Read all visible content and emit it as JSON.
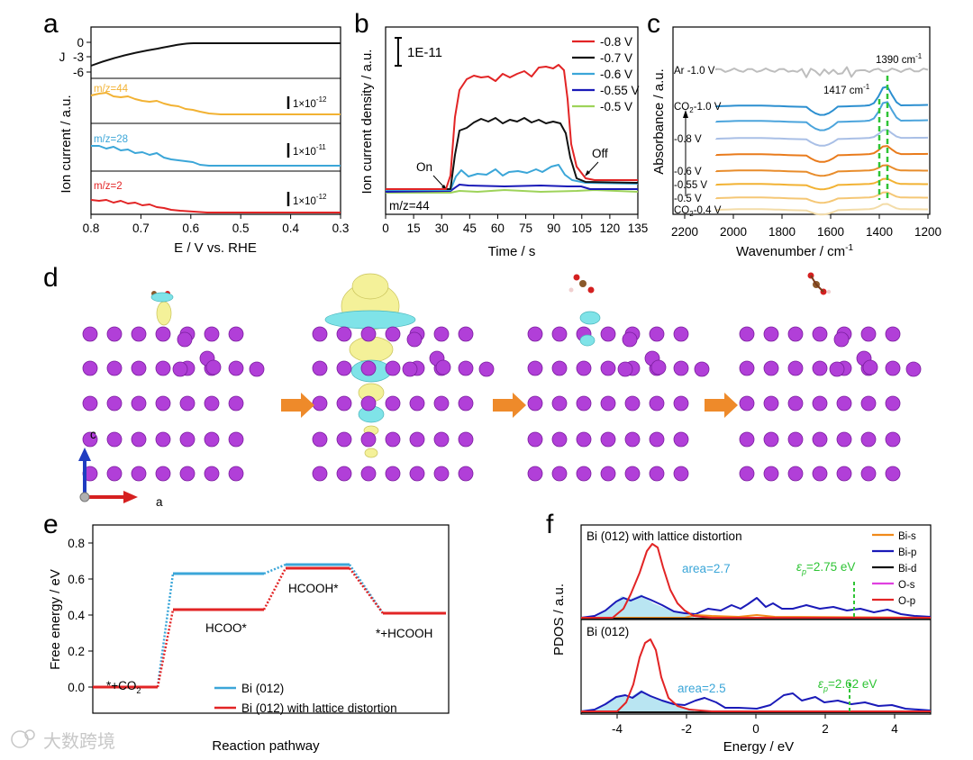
{
  "watermark": "大数跨境",
  "panel_a": {
    "letter": "a",
    "xlabel": "E / V vs. RHE",
    "ylabel": "Ion current / a.u.",
    "jlabel": "J",
    "xticks": [
      "0.8",
      "0.7",
      "0.6",
      "0.5",
      "0.4",
      "0.3"
    ],
    "jticks": [
      "0",
      "-3",
      "-6"
    ],
    "traces": [
      {
        "label": "m/z=44",
        "scale": "1×10",
        "exp": "-12",
        "color": "#F2B233"
      },
      {
        "label": "m/z=28",
        "scale": "1×10",
        "exp": "-11",
        "color": "#3BA6D8"
      },
      {
        "label": "m/z=2",
        "scale": "1×10",
        "exp": "-12",
        "color": "#E22425"
      }
    ]
  },
  "panel_b": {
    "letter": "b",
    "xlabel": "Time / s",
    "ylabel": "Ion current density / a.u.",
    "xticks": [
      "0",
      "15",
      "30",
      "45",
      "60",
      "75",
      "90",
      "105",
      "120",
      "135"
    ],
    "scale_label": "1E-11",
    "mz_label": "m/z=44",
    "on_label": "On",
    "off_label": "Off",
    "legend": [
      {
        "label": "-0.8 V",
        "color": "#E22425"
      },
      {
        "label": "-0.7 V",
        "color": "#111111"
      },
      {
        "label": "-0.6 V",
        "color": "#3BA6D8"
      },
      {
        "label": "-0.55 V",
        "color": "#1A1AB8"
      },
      {
        "label": "-0.5 V",
        "color": "#9ED35A"
      }
    ]
  },
  "panel_c": {
    "letter": "c",
    "xlabel": "Wavenumber / cm",
    "xlabel_sup": "-1",
    "ylabel": "Absorbance / a.u.",
    "xticks": [
      "2200",
      "2000",
      "1800",
      "1600",
      "1400",
      "1200"
    ],
    "peak1": "1390 cm",
    "peak2": "1417 cm",
    "peak_sup": "-1",
    "spectra": [
      {
        "label": "Ar -1.0 V",
        "color": "#BDBDBD"
      },
      {
        "label": "CO",
        "sub": "2",
        "label2": "-1.0 V",
        "color": "#2C8FD0"
      },
      {
        "label": "",
        "color": "#4BA4DC"
      },
      {
        "label": "-0.8 V",
        "color": "#A9BFE6"
      },
      {
        "label": "",
        "color": "#E97B1C"
      },
      {
        "label": "-0.6 V",
        "color": "#E88C2B"
      },
      {
        "label": "-0.55 V",
        "color": "#F2B233"
      },
      {
        "label": "-0.5 V",
        "color": "#F5C775"
      },
      {
        "label": "CO",
        "sub": "2",
        "label2": "-0.4 V",
        "color": "#F3DCA8"
      }
    ]
  },
  "panel_d": {
    "letter": "d",
    "axis_c": "c",
    "axis_a": "a"
  },
  "panel_e": {
    "letter": "e",
    "ylabel": "Free energy / eV",
    "xlabel": "Reaction pathway",
    "yticks": [
      "0.0",
      "0.2",
      "0.4",
      "0.6",
      "0.8"
    ],
    "labels": {
      "start": "*+CO",
      "start_sub": "2",
      "hcoo": "HCOO*",
      "hcooh": "HCOOH*",
      "end": "*+HCOOH"
    },
    "legend": [
      "Bi (012)",
      "Bi (012) with lattice distortion"
    ],
    "chart_data": {
      "type": "line",
      "x": [
        "*+CO2",
        "HCOO*",
        "HCOOH*",
        "*+HCOOH"
      ],
      "series": [
        {
          "name": "Bi (012)",
          "color": "#3BA6D8",
          "values": [
            0.0,
            0.63,
            0.68,
            0.41
          ]
        },
        {
          "name": "Bi (012) with lattice distortion",
          "color": "#E22425",
          "values": [
            0.0,
            0.43,
            0.66,
            0.41
          ]
        }
      ],
      "ylabel": "Free energy / eV",
      "xlabel": "Reaction pathway",
      "ylim": [
        -0.1,
        0.9
      ]
    }
  },
  "panel_f": {
    "letter": "f",
    "xlabel": "Energy / eV",
    "ylabel": "PDOS / a.u.",
    "xticks": [
      "-4",
      "-2",
      "0",
      "2",
      "4"
    ],
    "top_title": "Bi (012) with lattice distortion",
    "bottom_title": "Bi (012)",
    "area_top": "area=2.7",
    "area_bottom": "area=2.5",
    "eps_top": "=2.75 eV",
    "eps_bottom": "=2.62 eV",
    "eps_sym": "ε",
    "eps_sub": "p",
    "legend": [
      {
        "label": "Bi-s",
        "color": "#F08A1A"
      },
      {
        "label": "Bi-p",
        "color": "#1A1AB8"
      },
      {
        "label": "Bi-d",
        "color": "#111111"
      },
      {
        "label": "O-s",
        "color": "#E040E0"
      },
      {
        "label": "O-p",
        "color": "#E22425"
      }
    ]
  }
}
